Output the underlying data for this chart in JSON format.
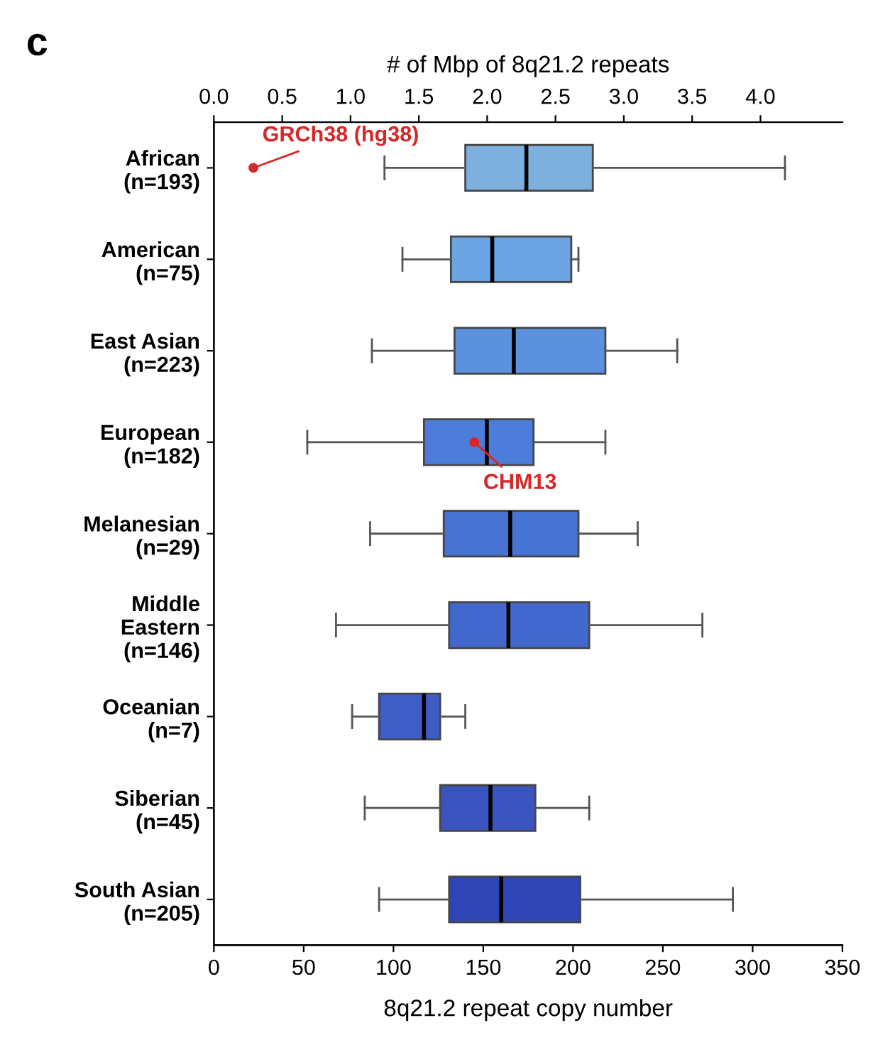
{
  "chart_data": {
    "type": "box",
    "orientation": "horizontal",
    "xlabel": "8q21.2 repeat copy number",
    "x2label": "# of Mbp of 8q21.2 repeats",
    "categories": [
      "African\n(n=193)",
      "American\n(n=75)",
      "East Asian\n(n=223)",
      "European\n(n=182)",
      "Melanesian\n(n=29)",
      "Middle\nEastern\n(n=146)",
      "Oceanian\n(n=7)",
      "Siberian\n(n=45)",
      "South Asian\n(n=205)"
    ],
    "colors": [
      "#6fa8dc",
      "#5b9be0",
      "#4a86dc",
      "#3a6fd8",
      "#3464cf",
      "#2f58c8",
      "#2a4cc0",
      "#2442b8",
      "#1a32b0"
    ],
    "boxes": [
      {
        "low": 95,
        "q1": 140,
        "median": 174,
        "q3": 211,
        "high": 318
      },
      {
        "low": 105,
        "q1": 132,
        "median": 155,
        "q3": 199,
        "high": 203
      },
      {
        "low": 88,
        "q1": 134,
        "median": 167,
        "q3": 218,
        "high": 258
      },
      {
        "low": 52,
        "q1": 117,
        "median": 152,
        "q3": 178,
        "high": 218
      },
      {
        "low": 87,
        "q1": 128,
        "median": 165,
        "q3": 203,
        "high": 236
      },
      {
        "low": 68,
        "q1": 131,
        "median": 164,
        "q3": 209,
        "high": 272
      },
      {
        "low": 77,
        "q1": 92,
        "median": 117,
        "q3": 126,
        "high": 140
      },
      {
        "low": 84,
        "q1": 126,
        "median": 154,
        "q3": 179,
        "high": 209
      },
      {
        "low": 92,
        "q1": 131,
        "median": 160,
        "q3": 204,
        "high": 289
      }
    ],
    "xlim": [
      0,
      350
    ],
    "xticks": [
      0,
      50,
      100,
      150,
      200,
      250,
      300,
      350
    ],
    "x2lim": [
      0,
      4.6
    ],
    "x2ticks": [
      {
        "value": 0,
        "label": "0.0"
      },
      {
        "value": 0.5,
        "label": "0.5"
      },
      {
        "value": 1,
        "label": "1.0"
      },
      {
        "value": 1.5,
        "label": "1.5"
      },
      {
        "value": 2,
        "label": "2.0"
      },
      {
        "value": 2.5,
        "label": "2.5"
      },
      {
        "value": 3,
        "label": "3.0"
      },
      {
        "value": 3.5,
        "label": "3.5"
      },
      {
        "value": 4,
        "label": "4.0"
      }
    ],
    "annotations": [
      "c",
      {
        "text": "GRCh38 (hg38)",
        "x": 22,
        "y": "African\n(n=193)"
      },
      {
        "text": "CHM13",
        "x": 145,
        "y": "European\n(n=182)"
      }
    ],
    "grid": false
  }
}
